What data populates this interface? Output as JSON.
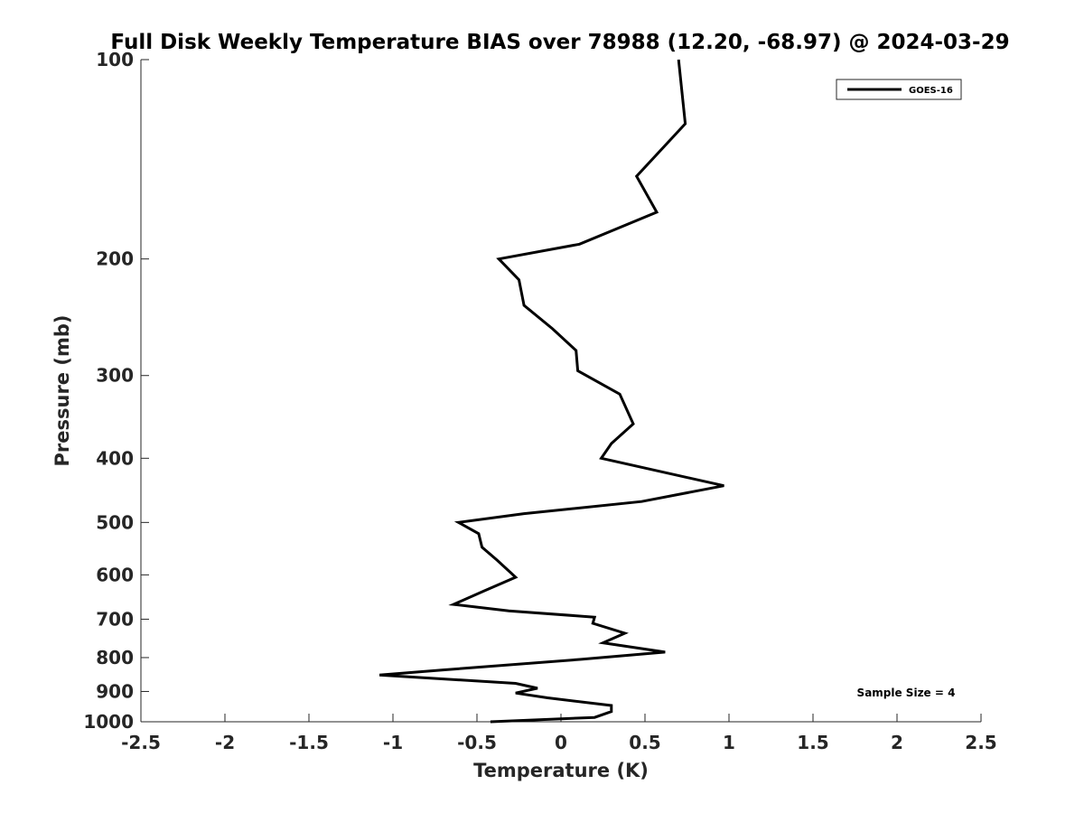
{
  "chart_data": {
    "type": "line",
    "title": "Full Disk Weekly Temperature BIAS over 78988 (12.20, -68.97) @ 2024-03-29",
    "xlabel": "Temperature (K)",
    "ylabel": "Pressure (mb)",
    "xlim": [
      -2.5,
      2.5
    ],
    "ylim": [
      100,
      1000
    ],
    "y_scale": "log",
    "y_reversed": true,
    "grid": false,
    "x_ticks": [
      -2.5,
      -2,
      -1.5,
      -1,
      -0.5,
      0,
      0.5,
      1,
      1.5,
      2,
      2.5
    ],
    "x_tick_labels": [
      "-2.5",
      "-2",
      "-1.5",
      "-1",
      "-0.5",
      "0",
      "0.5",
      "1",
      "1.5",
      "2",
      "2.5"
    ],
    "y_ticks": [
      100,
      200,
      300,
      400,
      500,
      600,
      700,
      800,
      900,
      1000
    ],
    "y_tick_labels": [
      "100",
      "200",
      "300",
      "400",
      "500",
      "600",
      "700",
      "800",
      "900",
      "1000"
    ],
    "legend_position": "top-right",
    "annotation": "Sample Size = 4",
    "series": [
      {
        "name": "GOES-16",
        "color": "#000000",
        "x": [
          0.7,
          0.74,
          0.45,
          0.57,
          0.11,
          -0.37,
          -0.25,
          -0.22,
          -0.05,
          0.09,
          0.1,
          0.35,
          0.43,
          0.3,
          0.24,
          0.97,
          0.48,
          -0.22,
          -0.61,
          -0.49,
          -0.47,
          -0.38,
          -0.27,
          -0.46,
          -0.64,
          -0.31,
          0.2,
          0.19,
          0.38,
          0.25,
          0.62,
          0.12,
          -0.7,
          -1.08,
          -0.27,
          -0.14,
          -0.27,
          -0.08,
          0.3,
          0.3,
          0.2,
          -0.42
        ],
        "y": [
          100,
          125,
          150,
          170,
          190,
          200,
          215,
          235,
          255,
          275,
          295,
          320,
          355,
          380,
          400,
          440,
          465,
          485,
          500,
          520,
          545,
          570,
          605,
          635,
          665,
          680,
          695,
          710,
          735,
          760,
          785,
          805,
          835,
          850,
          875,
          890,
          905,
          920,
          945,
          965,
          985,
          1000
        ]
      }
    ]
  }
}
